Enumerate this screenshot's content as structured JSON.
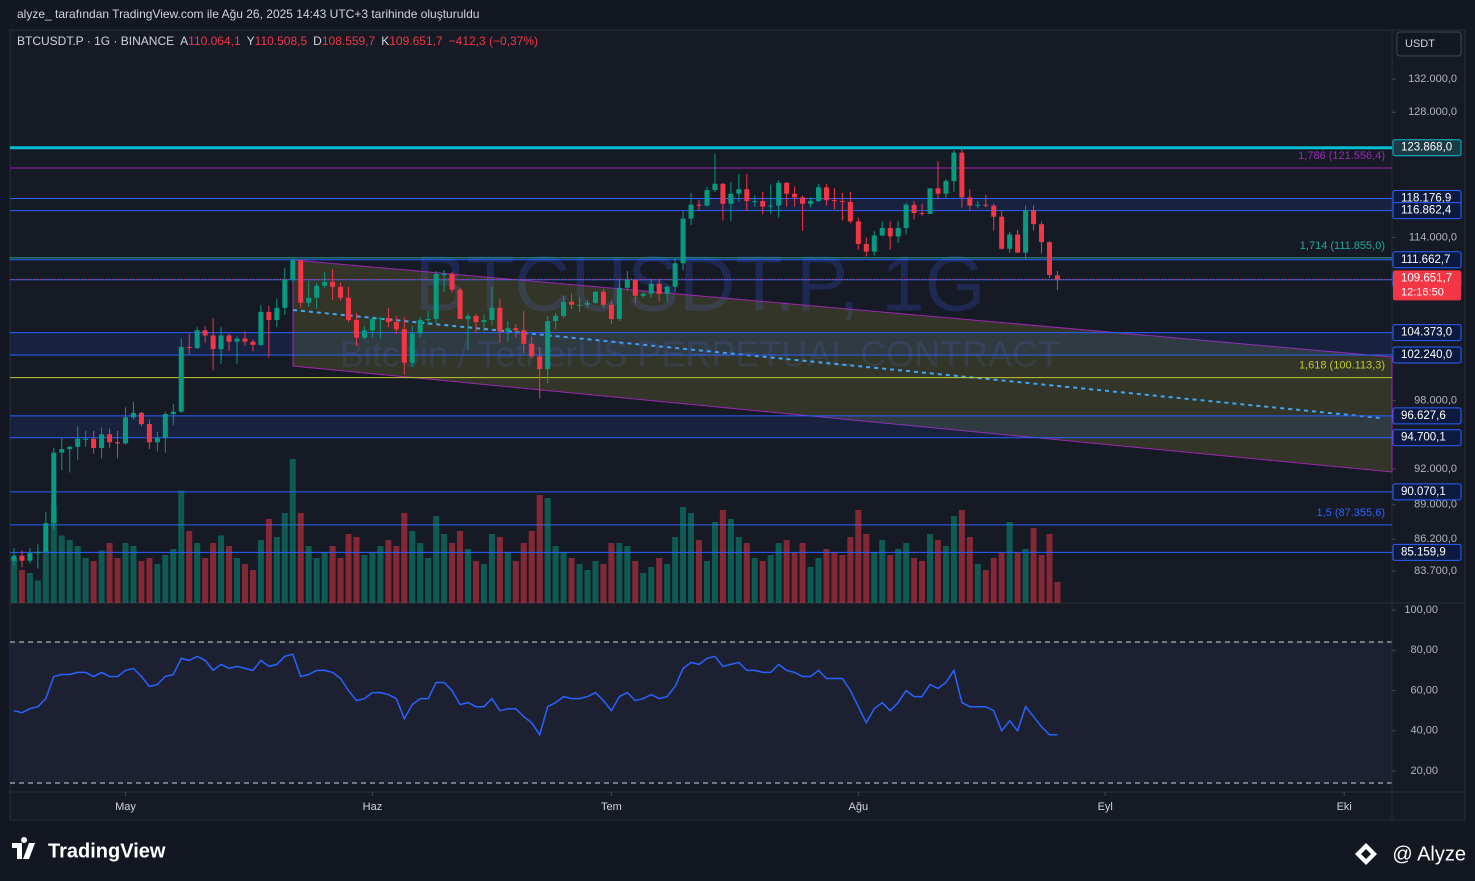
{
  "header": {
    "attribution": "alyze_ tarafından TradingView.com ile Ağu 26, 2025 14:43 UTC+3 tarihinde oluşturuldu",
    "symbol": "BTCUSDT.P · 1G · BINANCE",
    "open_key": "A",
    "open": "110.064,1",
    "high_key": "Y",
    "high": "110.508,5",
    "low_key": "D",
    "low": "108.559,7",
    "close_key": "K",
    "close": "109.651,7",
    "change": "−412,3 (−0,37%)"
  },
  "chart_data": {
    "type": "candlestick",
    "currency": "USDT",
    "watermark": "BTCUSDT.P, 1G",
    "watermark_subtitle": "Bitcoin / TetherUS PERPETUAL CONTRACT",
    "log_scale": true,
    "up_color": "#089981",
    "down_color": "#f23645",
    "xlim": [
      -0.5,
      173
    ],
    "xticks": [
      {
        "value": 14,
        "label": "May"
      },
      {
        "value": 45,
        "label": "Haz"
      },
      {
        "value": 75,
        "label": "Tem"
      },
      {
        "value": 106,
        "label": "Ağu"
      },
      {
        "value": 137,
        "label": "Eyl"
      },
      {
        "value": 167,
        "label": "Eki"
      }
    ],
    "ylim": [
      81260,
      138130
    ],
    "yticks": [
      {
        "value": 132000,
        "label": "132.000,0"
      },
      {
        "value": 128000,
        "label": "128.000,0"
      },
      {
        "value": 114000,
        "label": "114.000,0"
      },
      {
        "value": 98000,
        "label": "98.000,0"
      },
      {
        "value": 92000,
        "label": "92.000,0"
      },
      {
        "value": 89000,
        "label": "89.000,0"
      },
      {
        "value": 86200,
        "label": "86.200,0"
      },
      {
        "value": 83700,
        "label": "83.700,0"
      }
    ],
    "ohlc": [
      [
        84500,
        85500,
        84100,
        84900
      ],
      [
        84900,
        85300,
        84000,
        84500
      ],
      [
        84500,
        85500,
        84300,
        85100
      ],
      [
        85100,
        85800,
        83900,
        85200
      ],
      [
        85200,
        88400,
        85100,
        87500
      ],
      [
        87500,
        93800,
        87000,
        93400
      ],
      [
        93400,
        94700,
        91900,
        93700
      ],
      [
        93700,
        94000,
        91700,
        93900
      ],
      [
        93900,
        95700,
        92800,
        94600
      ],
      [
        94600,
        95300,
        93900,
        94600
      ],
      [
        94600,
        95300,
        93300,
        93800
      ],
      [
        93800,
        95600,
        92900,
        95000
      ],
      [
        95000,
        95500,
        93800,
        94300
      ],
      [
        94300,
        95300,
        92900,
        94200
      ],
      [
        94200,
        97400,
        94100,
        96500
      ],
      [
        96500,
        97900,
        96300,
        96900
      ],
      [
        96900,
        97000,
        95700,
        95900
      ],
      [
        95900,
        96300,
        93700,
        94300
      ],
      [
        94300,
        95200,
        93500,
        94700
      ],
      [
        94700,
        97000,
        93400,
        96800
      ],
      [
        96800,
        97700,
        95800,
        97000
      ],
      [
        97000,
        103800,
        96900,
        103000
      ],
      [
        103000,
        104300,
        102300,
        102900
      ],
      [
        102900,
        104900,
        102800,
        104600
      ],
      [
        104600,
        105000,
        103400,
        104100
      ],
      [
        104100,
        105800,
        100800,
        102800
      ],
      [
        102800,
        104900,
        101400,
        104100
      ],
      [
        104100,
        104300,
        102600,
        103500
      ],
      [
        103500,
        104000,
        101400,
        103800
      ],
      [
        103800,
        104500,
        103100,
        103500
      ],
      [
        103500,
        103700,
        102600,
        103200
      ],
      [
        103200,
        107100,
        103100,
        106400
      ],
      [
        106400,
        107000,
        102000,
        105600
      ],
      [
        105600,
        107700,
        104900,
        106800
      ],
      [
        106800,
        110800,
        106100,
        109600
      ],
      [
        109600,
        111900,
        109300,
        111600
      ],
      [
        111600,
        111700,
        106800,
        107300
      ],
      [
        107300,
        109500,
        106900,
        107800
      ],
      [
        107800,
        109300,
        106700,
        109000
      ],
      [
        109000,
        110400,
        108800,
        109400
      ],
      [
        109400,
        110700,
        107600,
        108900
      ],
      [
        108900,
        109300,
        107500,
        107800
      ],
      [
        107800,
        108900,
        105400,
        105600
      ],
      [
        105600,
        106300,
        103100,
        103900
      ],
      [
        103900,
        105000,
        103700,
        104600
      ],
      [
        104600,
        105900,
        103900,
        105700
      ],
      [
        105700,
        105900,
        103800,
        105800
      ],
      [
        105800,
        106800,
        104900,
        105400
      ],
      [
        105400,
        106000,
        104300,
        104700
      ],
      [
        104700,
        105900,
        100400,
        101500
      ],
      [
        101500,
        105000,
        101100,
        104300
      ],
      [
        104300,
        105900,
        103900,
        105600
      ],
      [
        105600,
        106500,
        105100,
        105700
      ],
      [
        105700,
        110500,
        105300,
        110200
      ],
      [
        110200,
        110600,
        108400,
        110200
      ],
      [
        110200,
        110400,
        108300,
        108600
      ],
      [
        108600,
        108800,
        105700,
        105700
      ],
      [
        105700,
        106200,
        102700,
        106000
      ],
      [
        106000,
        106200,
        104400,
        105400
      ],
      [
        105400,
        106100,
        104500,
        105600
      ],
      [
        105600,
        108900,
        105100,
        106800
      ],
      [
        106800,
        107700,
        103400,
        104500
      ],
      [
        104500,
        105500,
        103500,
        104800
      ],
      [
        104800,
        105200,
        103900,
        104600
      ],
      [
        104600,
        106500,
        102400,
        103300
      ],
      [
        103300,
        104000,
        101900,
        102100
      ],
      [
        102100,
        103000,
        98200,
        100900
      ],
      [
        100900,
        106000,
        99600,
        105500
      ],
      [
        105500,
        106300,
        104700,
        106000
      ],
      [
        106000,
        108000,
        105800,
        107400
      ],
      [
        107400,
        108200,
        106700,
        107100
      ],
      [
        107100,
        107800,
        106400,
        107100
      ],
      [
        107100,
        107600,
        106800,
        107300
      ],
      [
        107300,
        108500,
        107200,
        108400
      ],
      [
        108400,
        108700,
        106800,
        107100
      ],
      [
        107100,
        107500,
        105200,
        105700
      ],
      [
        105700,
        109700,
        105500,
        108800
      ],
      [
        108800,
        110500,
        108500,
        109600
      ],
      [
        109600,
        109700,
        107300,
        108000
      ],
      [
        108000,
        108400,
        107800,
        108200
      ],
      [
        108200,
        109700,
        107800,
        109200
      ],
      [
        109200,
        109700,
        107500,
        108200
      ],
      [
        108200,
        109000,
        107400,
        108900
      ],
      [
        108900,
        111900,
        108400,
        111300
      ],
      [
        111300,
        116800,
        110600,
        116000
      ],
      [
        116000,
        118800,
        115300,
        117500
      ],
      [
        117500,
        118000,
        116900,
        117400
      ],
      [
        117400,
        119500,
        117300,
        119100
      ],
      [
        119100,
        123200,
        118900,
        119800
      ],
      [
        119800,
        119900,
        115800,
        117600
      ],
      [
        117600,
        120000,
        115700,
        118700
      ],
      [
        118700,
        120900,
        117800,
        119200
      ],
      [
        119200,
        120900,
        116800,
        117900
      ],
      [
        117900,
        118500,
        117300,
        117900
      ],
      [
        117900,
        118900,
        116500,
        117300
      ],
      [
        117300,
        119700,
        116500,
        117400
      ],
      [
        117400,
        120200,
        116100,
        119900
      ],
      [
        119900,
        120000,
        117300,
        118700
      ],
      [
        118700,
        119500,
        117300,
        118300
      ],
      [
        118300,
        118500,
        114700,
        117600
      ],
      [
        117600,
        118300,
        117200,
        117900
      ],
      [
        117900,
        119800,
        117800,
        119400
      ],
      [
        119400,
        119800,
        117400,
        118000
      ],
      [
        118000,
        119300,
        117000,
        117900
      ],
      [
        117900,
        118800,
        115800,
        117800
      ],
      [
        117800,
        118900,
        115500,
        115700
      ],
      [
        115700,
        116100,
        112700,
        113300
      ],
      [
        113300,
        114000,
        112000,
        112500
      ],
      [
        112500,
        114700,
        112100,
        114200
      ],
      [
        114200,
        115700,
        114100,
        115000
      ],
      [
        115000,
        115700,
        112700,
        114100
      ],
      [
        114100,
        115700,
        113400,
        115000
      ],
      [
        115000,
        117700,
        114300,
        117500
      ],
      [
        117500,
        117900,
        115900,
        116600
      ],
      [
        116600,
        117600,
        116300,
        116500
      ],
      [
        116500,
        119300,
        116500,
        119300
      ],
      [
        119300,
        122300,
        118100,
        118700
      ],
      [
        118700,
        120300,
        118200,
        120100
      ],
      [
        120100,
        123600,
        118900,
        123300
      ],
      [
        123300,
        123800,
        117200,
        118300
      ],
      [
        118300,
        119200,
        116800,
        117400
      ],
      [
        117400,
        117900,
        117100,
        117500
      ],
      [
        117500,
        118600,
        117200,
        117400
      ],
      [
        117400,
        117600,
        114700,
        116200
      ],
      [
        116200,
        116800,
        112700,
        112800
      ],
      [
        112800,
        114600,
        112400,
        114300
      ],
      [
        114300,
        114800,
        112400,
        112400
      ],
      [
        112400,
        117400,
        111700,
        116900
      ],
      [
        116900,
        117400,
        114700,
        115400
      ],
      [
        115400,
        115700,
        112300,
        113500
      ],
      [
        113500,
        113600,
        109800,
        110100
      ],
      [
        110064.1,
        110508.5,
        108559.7,
        109651.7
      ]
    ],
    "volume": [
      30,
      22,
      20,
      15,
      35,
      65,
      45,
      42,
      38,
      30,
      28,
      35,
      40,
      30,
      40,
      38,
      28,
      30,
      26,
      32,
      36,
      75,
      48,
      40,
      30,
      40,
      45,
      38,
      30,
      26,
      22,
      42,
      56,
      44,
      60,
      96,
      60,
      38,
      30,
      34,
      38,
      30,
      46,
      44,
      32,
      34,
      38,
      42,
      38,
      60,
      48,
      40,
      30,
      58,
      46,
      40,
      48,
      36,
      28,
      26,
      46,
      44,
      34,
      28,
      40,
      48,
      72,
      70,
      38,
      34,
      30,
      26,
      22,
      28,
      26,
      40,
      40,
      38,
      28,
      20,
      24,
      30,
      26,
      44,
      64,
      60,
      42,
      28,
      54,
      62,
      56,
      44,
      40,
      30,
      28,
      32,
      40,
      42,
      34,
      40,
      24,
      30,
      36,
      34,
      32,
      44,
      62,
      46,
      34,
      42,
      32,
      36,
      40,
      30,
      28,
      46,
      42,
      38,
      58,
      62,
      44,
      26,
      22,
      30,
      34,
      54,
      34,
      36,
      50,
      32,
      46,
      14
    ],
    "last_price": {
      "value": 109651.7,
      "label": "109.651,7",
      "countdown": "12:16:50"
    },
    "levels": [
      {
        "value": 123868,
        "label": "123.868,0",
        "color": "#00bcd4"
      },
      {
        "value": 118176.9,
        "label": "118.176,9",
        "color": "#2962ff"
      },
      {
        "value": 116862.4,
        "label": "116.862,4",
        "color": "#2962ff"
      },
      {
        "value": 111662.7,
        "label": "111.662,7",
        "color": "#2962ff"
      },
      {
        "value": 109609.6,
        "label": "109.609,6",
        "color": "#2962ff"
      },
      {
        "value": 104373,
        "label": "104.373,0",
        "color": "#2962ff"
      },
      {
        "value": 102240,
        "label": "102.240,0",
        "color": "#2962ff"
      },
      {
        "value": 96627.6,
        "label": "96.627,6",
        "color": "#2962ff"
      },
      {
        "value": 94700.1,
        "label": "94.700,1",
        "color": "#2962ff"
      },
      {
        "value": 90070.1,
        "label": "90.070,1",
        "color": "#2962ff"
      },
      {
        "value": 85159.9,
        "label": "85.159,9",
        "color": "#2962ff"
      }
    ],
    "fib_levels": [
      {
        "value": 121556.4,
        "label": "1,786 (121.556,4)",
        "color": "#9c27b0"
      },
      {
        "value": 111855,
        "label": "1,714 (111.855,0)",
        "color": "#26a69a"
      },
      {
        "value": 100113.3,
        "label": "1,618 (100.113,3)",
        "color": "#c0ca33"
      },
      {
        "value": 87355.6,
        "label": "1,5 (87.355,6)",
        "color": "#2962ff"
      }
    ],
    "rsi": {
      "color": "#2962ff",
      "ylim": [
        9.6,
        103.5
      ],
      "yticks": [
        {
          "value": 100,
          "label": "100,00"
        },
        {
          "value": 80,
          "label": "80,00"
        },
        {
          "value": 60,
          "label": "60,00"
        },
        {
          "value": 40,
          "label": "40,00"
        },
        {
          "value": 20,
          "label": "20,00"
        }
      ],
      "values": [
        50,
        49,
        51,
        52,
        56,
        67,
        68,
        68,
        69,
        69,
        67,
        69,
        67,
        67,
        70,
        71,
        67,
        62,
        63,
        67,
        68,
        76,
        75,
        77,
        75,
        70,
        73,
        71,
        72,
        71,
        70,
        75,
        72,
        73,
        77,
        78,
        67,
        68,
        70,
        70,
        69,
        66,
        60,
        55,
        56,
        59,
        59,
        58,
        56,
        46,
        53,
        56,
        56,
        64,
        64,
        60,
        53,
        54,
        52,
        52,
        56,
        50,
        51,
        51,
        47,
        44,
        38,
        52,
        54,
        57,
        56,
        56,
        57,
        59,
        55,
        50,
        57,
        59,
        55,
        56,
        58,
        56,
        57,
        62,
        71,
        74,
        73,
        76,
        77,
        72,
        73,
        74,
        70,
        70,
        69,
        69,
        73,
        70,
        69,
        67,
        67,
        70,
        66,
        66,
        66,
        60,
        52,
        44,
        51,
        54,
        50,
        54,
        60,
        57,
        57,
        63,
        61,
        64,
        70,
        54,
        52,
        52,
        52,
        50,
        40,
        45,
        40,
        52,
        47,
        42,
        38,
        38
      ]
    }
  },
  "footer": {
    "brand": "TradingView",
    "author": "@ Alyze"
  }
}
